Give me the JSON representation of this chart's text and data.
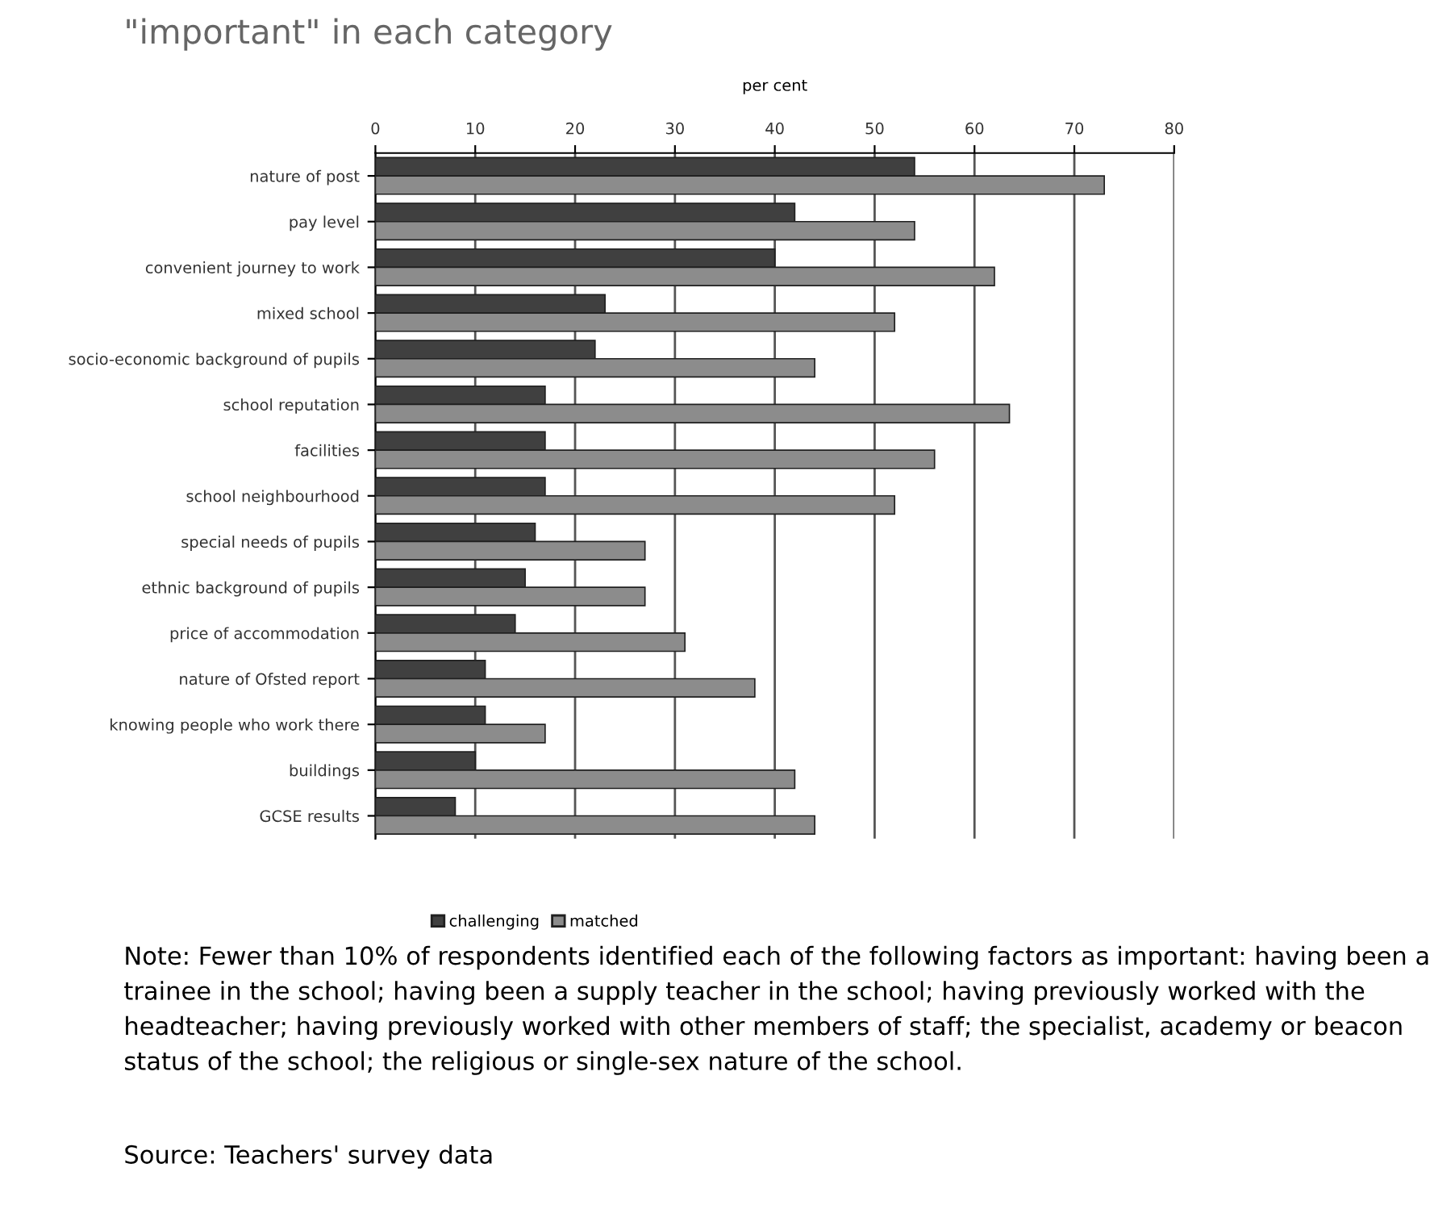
{
  "chart_data": {
    "type": "bar",
    "orientation": "horizontal",
    "title": "\"important\" in each category",
    "xlabel": "per cent",
    "categories": [
      "nature of post",
      "pay level",
      "convenient journey to work",
      "mixed school",
      "socio-economic background of pupils",
      "school reputation",
      "facilities",
      "school neighbourhood",
      "special needs of pupils",
      "ethnic background of pupils",
      "price of accommodation",
      "nature of Ofsted report",
      "knowing people who work there",
      "buildings",
      "GCSE results"
    ],
    "series": [
      {
        "name": "challenging",
        "color": "#404040",
        "values": [
          54,
          42,
          40,
          23,
          22,
          17,
          17,
          17,
          16,
          15,
          14,
          11,
          11,
          10,
          8
        ]
      },
      {
        "name": "matched",
        "color": "#8c8c8c",
        "values": [
          73,
          54,
          62,
          52,
          44,
          63.5,
          56,
          52,
          27,
          27,
          31,
          38,
          17,
          42,
          44
        ]
      }
    ],
    "xlim": [
      0,
      80
    ],
    "xticks": [
      0,
      10,
      20,
      30,
      40,
      50,
      60,
      70,
      80
    ],
    "grid": "x",
    "legend": "bottom",
    "annotations": [
      "Note: Fewer than 10% of respondents identified each of the following factors as important: having been a trainee in the school; having been a supply teacher in the school; having previously worked with the headteacher; having previously worked with other members of staff; the specialist, academy or beacon status of the school; the religious or single-sex nature of the school.",
      "Source: Teachers' survey data"
    ]
  }
}
